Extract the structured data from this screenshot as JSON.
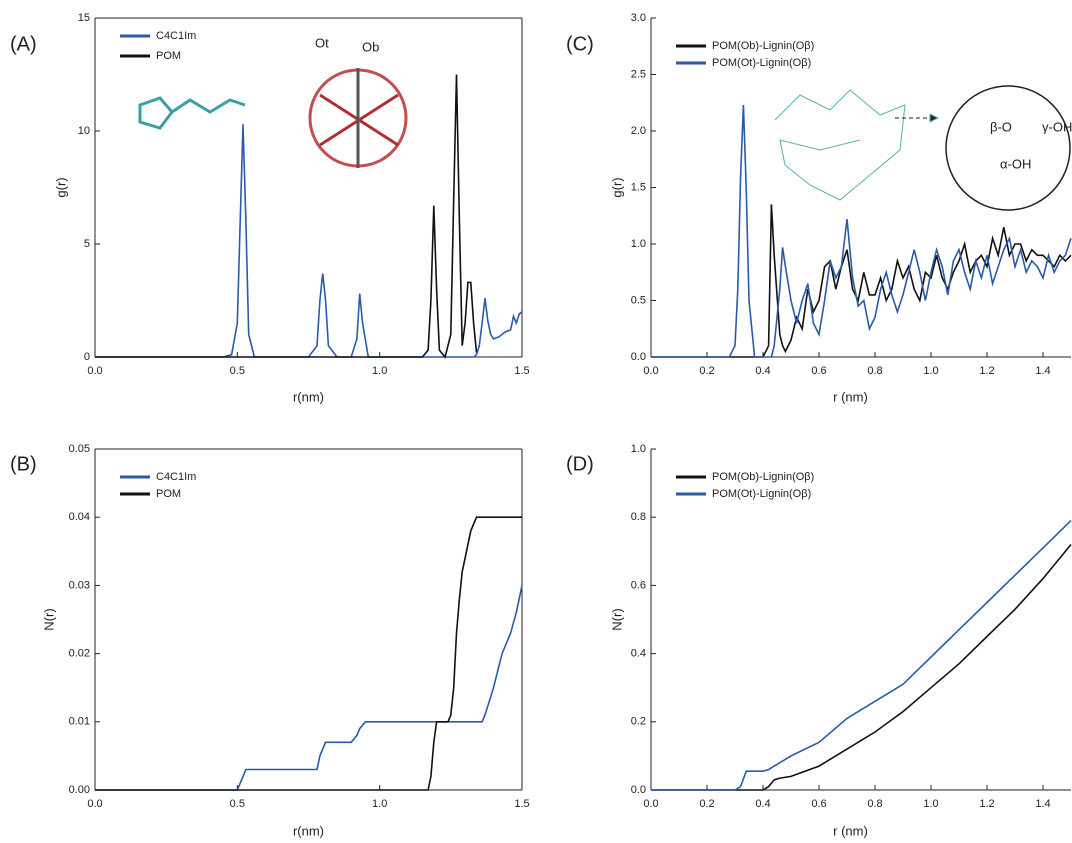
{
  "chart_data": [
    {
      "type": "line",
      "panel_label": "(A)",
      "xlabel": "r(nm)",
      "ylabel": "g(r)",
      "x": [
        0,
        0.45,
        0.48,
        0.5,
        0.51,
        0.52,
        0.53,
        0.54,
        0.56,
        0.75,
        0.78,
        0.79,
        0.8,
        0.81,
        0.82,
        0.85,
        0.9,
        0.92,
        0.93,
        0.94,
        0.96,
        1.15,
        1.17,
        1.18,
        1.19,
        1.2,
        1.21,
        1.23,
        1.25,
        1.26,
        1.27,
        1.28,
        1.29,
        1.3,
        1.31,
        1.32,
        1.33,
        1.34,
        1.35,
        1.36,
        1.37,
        1.38,
        1.39,
        1.4,
        1.42,
        1.44,
        1.46,
        1.47,
        1.48,
        1.49,
        1.5
      ],
      "xlim": [
        0,
        1.5
      ],
      "xticks": [
        {
          "value": 0,
          "label": "0.0"
        },
        0.5,
        {
          "value": 1,
          "label": "1.0"
        },
        1.5
      ],
      "ylim": [
        0,
        15
      ],
      "yticks": [
        0,
        5,
        10,
        15
      ],
      "legend": "upper left",
      "annotations": [
        "Ot",
        "Ob"
      ],
      "series": [
        {
          "name": "C4C1Im",
          "color": "#2a5aa8",
          "values": [
            0,
            0,
            0.1,
            1.5,
            6,
            10.3,
            6,
            1,
            0,
            0,
            0.5,
            2.5,
            3.7,
            2.5,
            0.5,
            0,
            0,
            0.8,
            2.8,
            1.5,
            0,
            0,
            0,
            0,
            0,
            0,
            0,
            0,
            0,
            0,
            0,
            0,
            0,
            0,
            0,
            0,
            0,
            0.1,
            0.5,
            1.5,
            2.6,
            1.6,
            1.0,
            0.8,
            0.9,
            1.1,
            1.2,
            1.8,
            1.5,
            1.9,
            2.0
          ]
        },
        {
          "name": "POM",
          "color": "#111111",
          "values": [
            0,
            0,
            0,
            0,
            0,
            0,
            0,
            0,
            0,
            0,
            0,
            0,
            0,
            0,
            0,
            0,
            0,
            0,
            0,
            0,
            0,
            0,
            0.3,
            2.5,
            6.7,
            3,
            0.3,
            0,
            1,
            7,
            12.5,
            6,
            0.5,
            1.5,
            3.3,
            3.3,
            1.5,
            0.2,
            null,
            null,
            null,
            null,
            null,
            null,
            null,
            null,
            null,
            null,
            null,
            null,
            null
          ]
        }
      ]
    },
    {
      "type": "line",
      "panel_label": "(C)",
      "xlabel": "r (nm)",
      "ylabel": "g(r)",
      "x": [
        0,
        0.28,
        0.3,
        0.31,
        0.32,
        0.33,
        0.34,
        0.35,
        0.37,
        0.4,
        0.42,
        0.43,
        0.44,
        0.46,
        0.47,
        0.48,
        0.5,
        0.52,
        0.54,
        0.56,
        0.58,
        0.6,
        0.62,
        0.64,
        0.66,
        0.68,
        0.7,
        0.72,
        0.74,
        0.76,
        0.78,
        0.8,
        0.82,
        0.84,
        0.86,
        0.88,
        0.9,
        0.92,
        0.94,
        0.96,
        0.98,
        1.0,
        1.02,
        1.04,
        1.06,
        1.08,
        1.1,
        1.12,
        1.14,
        1.16,
        1.18,
        1.2,
        1.22,
        1.24,
        1.26,
        1.28,
        1.3,
        1.32,
        1.34,
        1.36,
        1.38,
        1.4,
        1.42,
        1.44,
        1.46,
        1.48,
        1.5
      ],
      "xlim": [
        0,
        1.5
      ],
      "xticks": [
        {
          "value": 0,
          "label": "0.0"
        },
        0.2,
        0.4,
        0.6,
        0.8,
        {
          "value": 1,
          "label": "1.0"
        },
        1.2,
        1.4
      ],
      "ylim": [
        0,
        3
      ],
      "yticks": [
        {
          "value": 0,
          "label": "0.0"
        },
        0.5,
        {
          "value": 1,
          "label": "1.0"
        },
        1.5,
        {
          "value": 2,
          "label": "2.0"
        },
        2.5,
        {
          "value": 3,
          "label": "3.0"
        }
      ],
      "legend": "upper left",
      "annotations": [
        "β-O",
        "γ-OH",
        "α-OH"
      ],
      "series": [
        {
          "name": "POM(Ob)-Lignin(Oβ)",
          "color": "#111111",
          "values": [
            0,
            0,
            0,
            0,
            0,
            0,
            0,
            0,
            0,
            0,
            0.1,
            1.35,
            0.9,
            0.2,
            0.1,
            0.05,
            0.15,
            0.35,
            0.25,
            0.6,
            0.4,
            0.5,
            0.8,
            0.85,
            0.6,
            0.8,
            0.95,
            0.6,
            0.5,
            0.75,
            0.55,
            0.55,
            0.7,
            0.5,
            0.6,
            0.85,
            0.7,
            0.8,
            0.6,
            0.5,
            0.75,
            0.7,
            0.9,
            0.7,
            0.6,
            0.75,
            0.85,
            1.0,
            0.75,
            0.85,
            0.9,
            0.8,
            1.05,
            0.9,
            1.15,
            0.9,
            1.0,
            1.0,
            0.85,
            0.95,
            0.9,
            0.9,
            0.85,
            0.8,
            0.9,
            0.85,
            0.9
          ]
        },
        {
          "name": "POM(Ot)-Lignin(Oβ)",
          "color": "#2a5aa8",
          "values": [
            0,
            0,
            0.1,
            0.6,
            1.6,
            2.23,
            1.5,
            0.5,
            0,
            0,
            0,
            0,
            0.1,
            0.6,
            0.97,
            0.8,
            0.5,
            0.3,
            0.5,
            0.65,
            0.3,
            0.2,
            0.5,
            0.85,
            0.7,
            0.8,
            1.22,
            0.7,
            0.45,
            0.5,
            0.25,
            0.35,
            0.6,
            0.75,
            0.55,
            0.4,
            0.55,
            0.75,
            0.95,
            0.75,
            0.5,
            0.75,
            0.95,
            0.8,
            0.55,
            0.85,
            0.95,
            0.75,
            0.6,
            0.85,
            0.7,
            0.9,
            0.65,
            0.8,
            0.95,
            1.05,
            0.8,
            0.95,
            0.75,
            0.85,
            0.8,
            0.7,
            0.9,
            0.75,
            0.85,
            0.9,
            1.05
          ]
        }
      ]
    },
    {
      "type": "line",
      "panel_label": "(B)",
      "xlabel": "r(nm)",
      "ylabel": "N(r)",
      "x": [
        0,
        0.5,
        0.51,
        0.52,
        0.53,
        0.78,
        0.79,
        0.8,
        0.81,
        0.9,
        0.92,
        0.93,
        0.95,
        1.17,
        1.18,
        1.19,
        1.2,
        1.24,
        1.25,
        1.26,
        1.27,
        1.28,
        1.29,
        1.3,
        1.32,
        1.34,
        1.35,
        1.36,
        1.37,
        1.4,
        1.43,
        1.46,
        1.48,
        1.5
      ],
      "xlim": [
        0,
        1.5
      ],
      "xticks": [
        {
          "value": 0,
          "label": "0.0"
        },
        0.5,
        {
          "value": 1,
          "label": "1.0"
        },
        1.5
      ],
      "ylim": [
        0,
        0.05
      ],
      "yticks": [
        {
          "value": 0,
          "label": "0.00"
        },
        0.01,
        0.02,
        0.03,
        0.04,
        0.05
      ],
      "legend": "upper left",
      "series": [
        {
          "name": "C4C1Im",
          "color": "#2a5aa8",
          "values": [
            0,
            0,
            0.001,
            0.002,
            0.003,
            0.003,
            0.005,
            0.006,
            0.007,
            0.007,
            0.008,
            0.009,
            0.01,
            0.01,
            0.01,
            0.01,
            0.01,
            0.01,
            0.01,
            0.01,
            0.01,
            0.01,
            0.01,
            0.01,
            0.01,
            0.01,
            0.01,
            0.01,
            0.011,
            0.015,
            0.02,
            0.023,
            0.026,
            0.03
          ]
        },
        {
          "name": "POM",
          "color": "#111111",
          "values": [
            0,
            0,
            0,
            0,
            0,
            0,
            0,
            0,
            0,
            0,
            0,
            0,
            0,
            0,
            0.002,
            0.007,
            0.01,
            0.01,
            0.011,
            0.015,
            0.023,
            0.028,
            0.032,
            0.034,
            0.038,
            0.04,
            0.04,
            0.04,
            0.04,
            0.04,
            0.04,
            0.04,
            0.04,
            0.04
          ]
        }
      ]
    },
    {
      "type": "line",
      "panel_label": "(D)",
      "xlabel": "r (nm)",
      "ylabel": "N(r)",
      "x": [
        0,
        0.3,
        0.32,
        0.34,
        0.36,
        0.4,
        0.42,
        0.44,
        0.46,
        0.5,
        0.6,
        0.7,
        0.8,
        0.9,
        1.0,
        1.1,
        1.2,
        1.3,
        1.4,
        1.5
      ],
      "xlim": [
        0,
        1.5
      ],
      "xticks": [
        {
          "value": 0,
          "label": "0.0"
        },
        0.2,
        0.4,
        0.6,
        0.8,
        {
          "value": 1,
          "label": "1.0"
        },
        1.2,
        1.4
      ],
      "ylim": [
        0,
        1
      ],
      "yticks": [
        {
          "value": 0,
          "label": "0.0"
        },
        0.2,
        0.4,
        0.6,
        0.8,
        {
          "value": 1,
          "label": "1.0"
        }
      ],
      "legend": "upper left",
      "series": [
        {
          "name": "POM(Ob)-Lignin(Oβ)",
          "color": "#111111",
          "values": [
            0,
            0,
            0,
            0,
            0,
            0,
            0.01,
            0.03,
            0.035,
            0.04,
            0.07,
            0.12,
            0.17,
            0.23,
            0.3,
            0.37,
            0.45,
            0.53,
            0.62,
            0.72
          ]
        },
        {
          "name": "POM(Ot)-Lignin(Oβ)",
          "color": "#2a5aa8",
          "values": [
            0,
            0,
            0.01,
            0.055,
            0.055,
            0.055,
            0.06,
            0.07,
            0.08,
            0.1,
            0.14,
            0.21,
            0.26,
            0.31,
            0.39,
            0.47,
            0.55,
            0.63,
            0.71,
            0.79
          ]
        }
      ]
    }
  ]
}
